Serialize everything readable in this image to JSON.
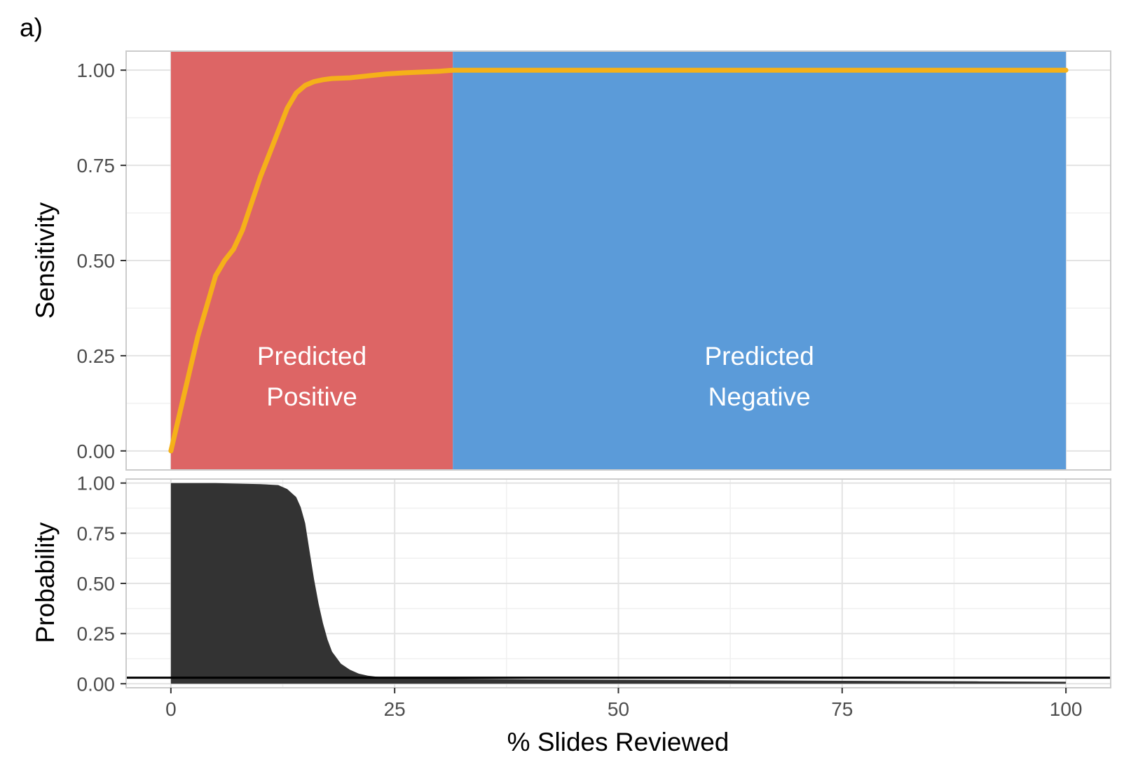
{
  "panel_tag": "a)",
  "colors": {
    "predicted_positive": "#dd6565",
    "predicted_negative": "#5b9bd9",
    "sensitivity_line": "#f5b119",
    "probability_fill": "#333333",
    "reference_line": "#000000",
    "grid_major": "#e3e3e3",
    "grid_minor": "#f0f0f0",
    "panel_border": "#cccccc"
  },
  "chart_data": [
    {
      "type": "line",
      "panel": "top",
      "xlabel": "",
      "ylabel": "Sensitivity",
      "xlim": [
        -5,
        105
      ],
      "ylim": [
        -0.05,
        1.05
      ],
      "yticks": [
        "0.00",
        "0.25",
        "0.50",
        "0.75",
        "1.00"
      ],
      "grid": true,
      "regions": [
        {
          "label_line1": "Predicted",
          "label_line2": "Positive",
          "x_start": 0,
          "x_end": 31.5,
          "color": "#dd6565"
        },
        {
          "label_line1": "Predicted",
          "label_line2": "Negative",
          "x_start": 31.5,
          "x_end": 100,
          "color": "#5b9bd9"
        }
      ],
      "series": [
        {
          "x": [
            0,
            1,
            2,
            3,
            4,
            5,
            6,
            7,
            8,
            9,
            10,
            11,
            12,
            13,
            14,
            15,
            16,
            17,
            18,
            20,
            22,
            24,
            26,
            28,
            30,
            31.5,
            35,
            50,
            75,
            100
          ],
          "y": [
            0.0,
            0.1,
            0.2,
            0.3,
            0.38,
            0.46,
            0.5,
            0.53,
            0.58,
            0.65,
            0.72,
            0.78,
            0.84,
            0.9,
            0.94,
            0.96,
            0.97,
            0.975,
            0.978,
            0.98,
            0.985,
            0.99,
            0.993,
            0.995,
            0.997,
            1.0,
            1.0,
            1.0,
            1.0,
            1.0
          ]
        }
      ]
    },
    {
      "type": "area",
      "panel": "bottom",
      "xlabel": "% Slides Reviewed",
      "ylabel": "Probability",
      "xlim": [
        -5,
        105
      ],
      "ylim": [
        -0.02,
        1.02
      ],
      "xticks": [
        "0",
        "25",
        "50",
        "75",
        "100"
      ],
      "yticks": [
        "0.00",
        "0.25",
        "0.50",
        "0.75",
        "1.00"
      ],
      "grid": true,
      "reference_line_y": 0.03,
      "series": [
        {
          "x": [
            0,
            5,
            10,
            12,
            13,
            14,
            14.5,
            15,
            15.5,
            16,
            16.5,
            17,
            17.5,
            18,
            19,
            20,
            21,
            22,
            23,
            25,
            27,
            30,
            35,
            40,
            50,
            60,
            75,
            90,
            100
          ],
          "y": [
            1.0,
            1.0,
            0.995,
            0.99,
            0.97,
            0.93,
            0.88,
            0.8,
            0.66,
            0.52,
            0.4,
            0.3,
            0.22,
            0.16,
            0.1,
            0.07,
            0.05,
            0.04,
            0.035,
            0.03,
            0.028,
            0.026,
            0.024,
            0.022,
            0.02,
            0.018,
            0.015,
            0.012,
            0.01
          ]
        }
      ]
    }
  ]
}
